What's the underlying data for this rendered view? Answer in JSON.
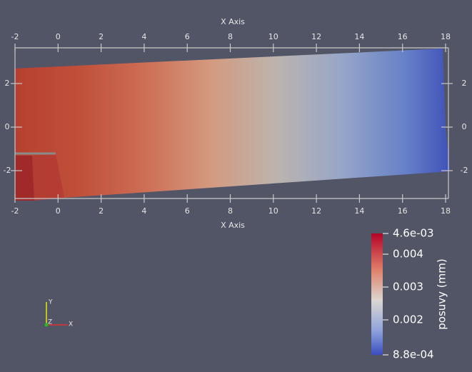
{
  "x_axis": {
    "title": "X Axis",
    "ticks": [
      -2,
      0,
      2,
      4,
      6,
      8,
      10,
      12,
      14,
      16,
      18
    ]
  },
  "y_axis": {
    "ticks": [
      2,
      0,
      -2
    ]
  },
  "color_bar": {
    "title": "posuvy (mm)",
    "labels": [
      "4.6e-03",
      "0.004",
      "0.003",
      "0.002",
      "8.8e-04"
    ]
  },
  "orientation_axes": {
    "x": "X",
    "y": "Y",
    "z": "Z"
  }
}
